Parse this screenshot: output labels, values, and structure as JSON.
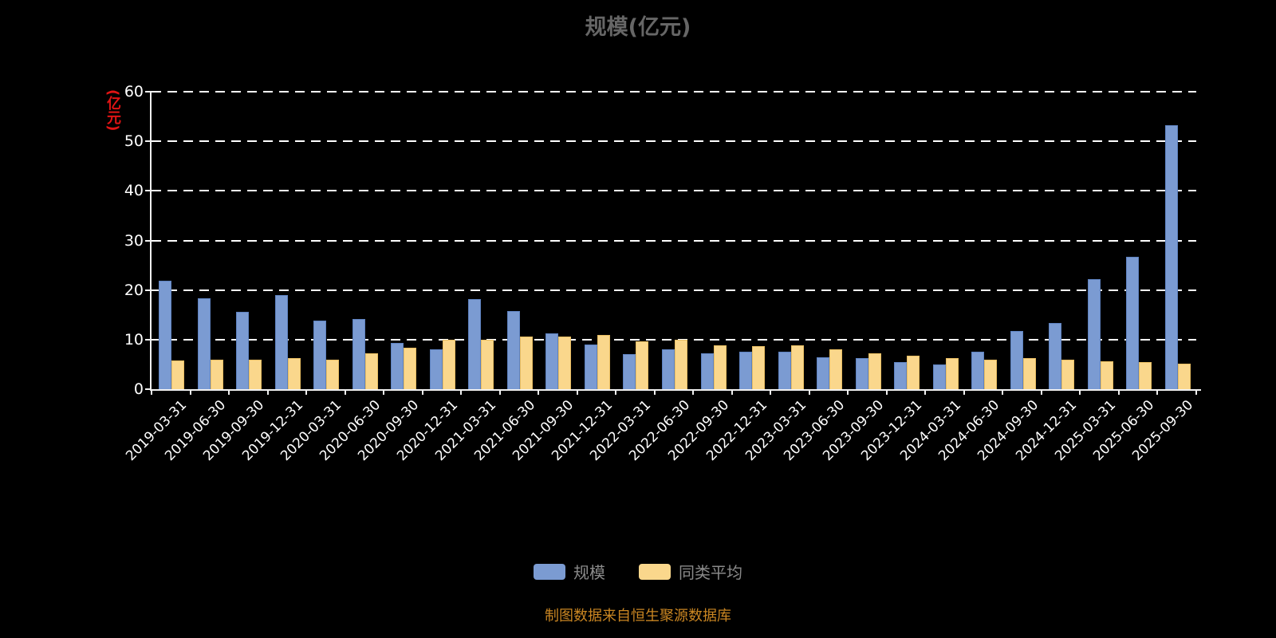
{
  "title": "规模(亿元)",
  "y_axis_label": "(亿元)",
  "footer": "制图数据来自恒生聚源数据库",
  "colors": {
    "background": "#000000",
    "title": "#666666",
    "axis": "#f0f0f0",
    "grid": "#ffffff",
    "tick_label": "#ffffff",
    "y_name": "#e01414",
    "footer": "#ca8622",
    "series_scale": "#7b9bd2",
    "series_peer_average": "#fad78c"
  },
  "legend": {
    "items": [
      {
        "label": "规模",
        "color": "#7b9bd2"
      },
      {
        "label": "同类平均",
        "color": "#fad78c"
      }
    ]
  },
  "chart_data": {
    "type": "bar",
    "title": "规模(亿元)",
    "ylabel": "(亿元)",
    "ylim": [
      0,
      60
    ],
    "yticks": [
      0,
      10,
      20,
      30,
      40,
      50,
      60
    ],
    "grid": "horizontal-dashed",
    "legend_position": "bottom",
    "categories": [
      "2019-03-31",
      "2019-06-30",
      "2019-09-30",
      "2019-12-31",
      "2020-03-31",
      "2020-06-30",
      "2020-09-30",
      "2020-12-31",
      "2021-03-31",
      "2021-06-30",
      "2021-09-30",
      "2021-12-31",
      "2022-03-31",
      "2022-06-30",
      "2022-09-30",
      "2022-12-31",
      "2023-03-31",
      "2023-06-30",
      "2023-09-30",
      "2023-12-31",
      "2024-03-31",
      "2024-06-30",
      "2024-09-30",
      "2024-12-31",
      "2025-03-31",
      "2025-06-30",
      "2025-09-30"
    ],
    "series": [
      {
        "name": "规模",
        "color": "#7b9bd2",
        "values": [
          21.9,
          18.4,
          15.6,
          19.0,
          13.8,
          14.2,
          9.3,
          8.0,
          18.2,
          15.8,
          11.2,
          9.0,
          7.0,
          8.0,
          7.2,
          7.6,
          7.5,
          6.5,
          6.2,
          5.5,
          5.0,
          7.5,
          11.7,
          13.3,
          22.2,
          26.7,
          53.2
        ]
      },
      {
        "name": "同类平均",
        "color": "#fad78c",
        "values": [
          5.8,
          5.9,
          6.0,
          6.2,
          6.0,
          7.2,
          8.4,
          9.9,
          10.0,
          10.6,
          10.6,
          11.0,
          9.6,
          10.0,
          8.8,
          8.7,
          8.8,
          8.0,
          7.2,
          6.8,
          6.3,
          6.0,
          6.3,
          5.9,
          5.6,
          5.4,
          5.2
        ]
      }
    ]
  }
}
